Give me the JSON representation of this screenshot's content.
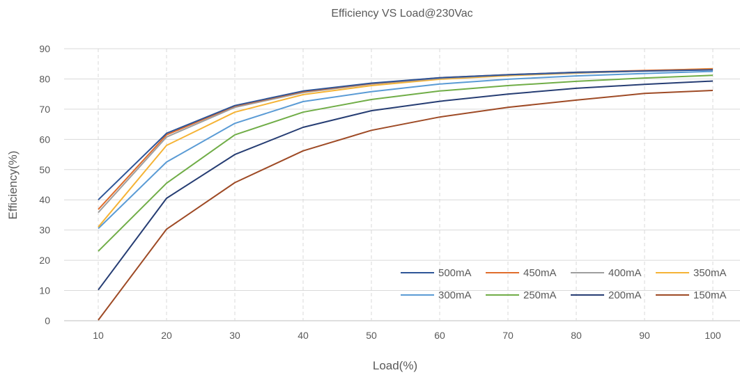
{
  "chart_data": {
    "type": "line",
    "title": "Efficiency VS Load@230Vac",
    "xlabel": "Load(%)",
    "ylabel": "Efficiency(%)",
    "x": [
      10,
      20,
      30,
      40,
      50,
      60,
      70,
      80,
      90,
      100
    ],
    "xlim": [
      5,
      105
    ],
    "ylim": [
      0,
      90
    ],
    "yticks": [
      0,
      10,
      20,
      30,
      40,
      50,
      60,
      70,
      80,
      90
    ],
    "grid": true,
    "legend_position": "bottom-right",
    "series": [
      {
        "name": "500mA",
        "color": "#2e5597",
        "values": [
          40.0,
          62.0,
          71.2,
          76.0,
          78.6,
          80.4,
          81.4,
          82.2,
          82.6,
          83.0
        ]
      },
      {
        "name": "450mA",
        "color": "#e06c2b",
        "values": [
          36.8,
          61.5,
          71.0,
          75.8,
          78.5,
          80.4,
          81.4,
          82.2,
          82.8,
          83.3
        ]
      },
      {
        "name": "400mA",
        "color": "#9e9e9e",
        "values": [
          35.8,
          60.8,
          70.6,
          75.5,
          78.3,
          80.2,
          81.3,
          82.0,
          82.6,
          83.0
        ]
      },
      {
        "name": "350mA",
        "color": "#f5b335",
        "values": [
          31.0,
          58.0,
          69.0,
          74.8,
          77.8,
          79.9,
          81.1,
          81.9,
          82.7,
          83.4
        ]
      },
      {
        "name": "300mA",
        "color": "#5a9bd5",
        "values": [
          30.5,
          52.5,
          65.3,
          72.5,
          75.8,
          78.3,
          79.9,
          81.0,
          81.8,
          82.5
        ]
      },
      {
        "name": "250mA",
        "color": "#70ad47",
        "values": [
          23.0,
          45.5,
          61.5,
          69.0,
          73.2,
          76.0,
          77.8,
          79.2,
          80.3,
          81.2
        ]
      },
      {
        "name": "200mA",
        "color": "#263d73",
        "values": [
          10.2,
          40.5,
          55.0,
          64.0,
          69.5,
          72.6,
          75.0,
          76.9,
          78.2,
          79.3
        ]
      },
      {
        "name": "150mA",
        "color": "#9e4a25",
        "values": [
          0.2,
          30.3,
          45.7,
          56.2,
          63.0,
          67.4,
          70.6,
          73.0,
          75.2,
          76.2
        ]
      }
    ]
  }
}
